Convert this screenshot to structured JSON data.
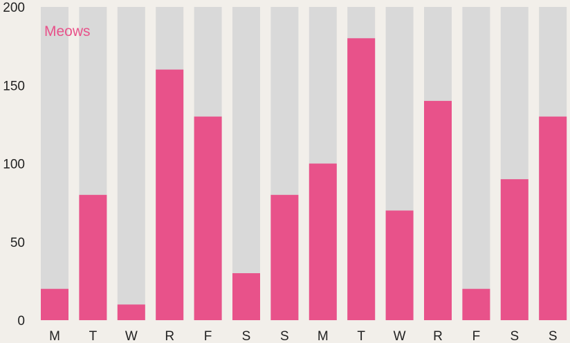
{
  "chart_data": {
    "type": "bar",
    "series_label": "Meows",
    "categories": [
      "M",
      "T",
      "W",
      "R",
      "F",
      "S",
      "S",
      "M",
      "T",
      "W",
      "R",
      "F",
      "S",
      "S"
    ],
    "values": [
      20,
      80,
      10,
      160,
      130,
      30,
      80,
      100,
      180,
      70,
      140,
      20,
      90,
      130
    ],
    "ylim": [
      0,
      200
    ],
    "yticks": [
      0,
      50,
      100,
      150,
      200
    ],
    "grid": false,
    "legend": "none",
    "colors": {
      "bar": "#e8528a",
      "track": "#d9d9d9",
      "background": "#f2efea",
      "label": "#e8528a"
    }
  }
}
